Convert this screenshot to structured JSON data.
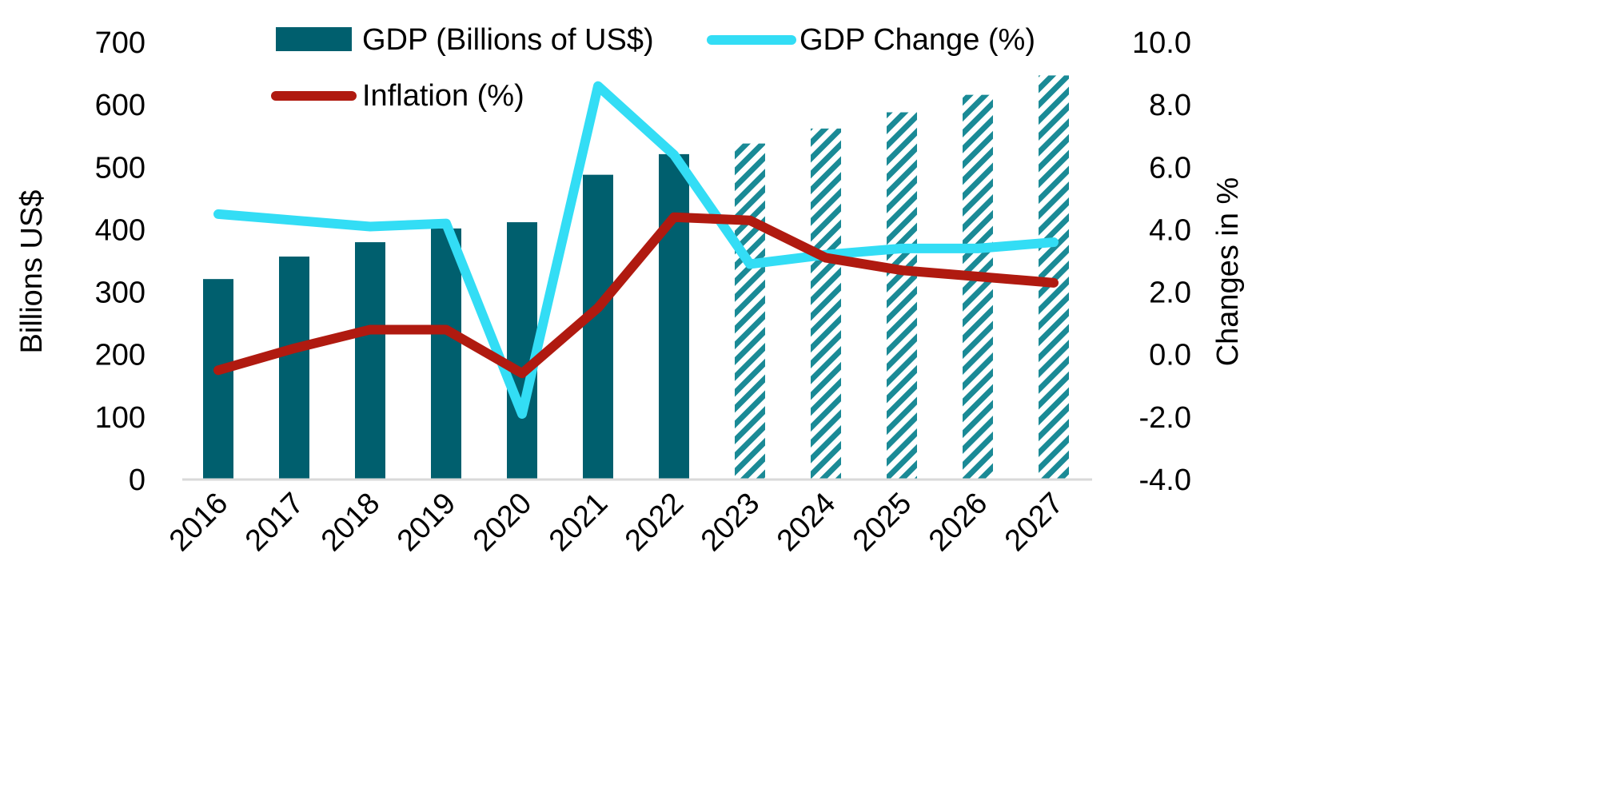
{
  "chart_data": {
    "type": "bar",
    "categories": [
      "2016",
      "2017",
      "2018",
      "2019",
      "2020",
      "2021",
      "2022",
      "2023",
      "2024",
      "2025",
      "2026",
      "2027"
    ],
    "forecast_from": "2023",
    "series": [
      {
        "name": "GDP (Billions of US$)",
        "type": "bar",
        "axis": "left",
        "color": "#005F6E",
        "values": [
          321,
          357,
          380,
          402,
          412,
          488,
          521,
          538,
          562,
          588,
          616,
          647
        ]
      },
      {
        "name": "GDP Change (%)",
        "type": "line",
        "axis": "right",
        "color": "#33DDF5",
        "values": [
          4.5,
          4.3,
          4.1,
          4.2,
          -1.9,
          8.6,
          6.4,
          2.9,
          3.2,
          3.4,
          3.4,
          3.6
        ]
      },
      {
        "name": "Inflation (%)",
        "type": "line",
        "axis": "right",
        "color": "#B01A10",
        "values": [
          -0.5,
          0.2,
          0.8,
          0.8,
          -0.6,
          1.5,
          4.4,
          4.3,
          3.1,
          2.7,
          2.5,
          2.3
        ]
      }
    ],
    "ylabel": "Billions US$",
    "ylabel_right": "Changes in %",
    "ylim": [
      0,
      700
    ],
    "ylim_right": [
      -4,
      10
    ],
    "yticks": [
      "0",
      "100",
      "200",
      "300",
      "400",
      "500",
      "600",
      "700"
    ],
    "yticks_right": [
      "-4.0",
      "-2.0",
      "0.0",
      "2.0",
      "4.0",
      "6.0",
      "8.0",
      "10.0"
    ],
    "grid": false,
    "legend_position": "top"
  }
}
